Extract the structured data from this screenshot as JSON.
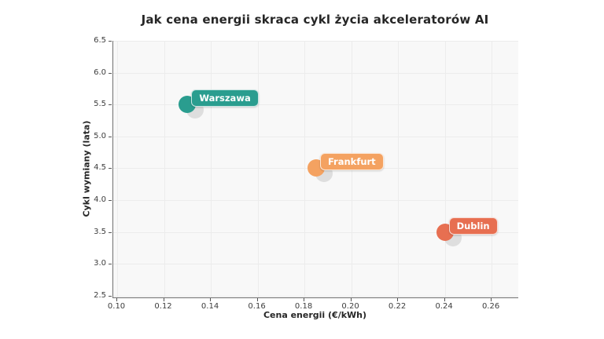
{
  "chart_data": {
    "type": "scatter",
    "title": "Jak cena energii skraca cykl życia akceleratorów AI",
    "xlabel": "Cena energii (€/kWh)",
    "ylabel": "Cykl wymiany (lata)",
    "xlim": [
      0.0983,
      0.2714
    ],
    "ylim": [
      2.47,
      6.505
    ],
    "grid": true,
    "legend": false,
    "background_color": "#f8f8f8",
    "gridline_color": "#ececec",
    "shadow_color": "#c4c4c4",
    "x_ticks": [
      {
        "value": 0.1,
        "label": "0.10"
      },
      {
        "value": 0.12,
        "label": "0.12"
      },
      {
        "value": 0.14,
        "label": "0.14"
      },
      {
        "value": 0.16,
        "label": "0.16"
      },
      {
        "value": 0.18,
        "label": "0.18"
      },
      {
        "value": 0.2,
        "label": "0.20"
      },
      {
        "value": 0.22,
        "label": "0.22"
      },
      {
        "value": 0.24,
        "label": "0.24"
      },
      {
        "value": 0.26,
        "label": "0.26"
      }
    ],
    "y_ticks": [
      {
        "value": 2.5,
        "label": "2.5"
      },
      {
        "value": 3.0,
        "label": "3.0"
      },
      {
        "value": 3.5,
        "label": "3.5"
      },
      {
        "value": 4.0,
        "label": "4.0"
      },
      {
        "value": 4.5,
        "label": "4.5"
      },
      {
        "value": 5.0,
        "label": "5.0"
      },
      {
        "value": 5.5,
        "label": "5.5"
      },
      {
        "value": 6.0,
        "label": "6.0"
      },
      {
        "value": 6.5,
        "label": "6.5"
      }
    ],
    "points": [
      {
        "label": "Warszawa",
        "x": 0.13,
        "y": 5.5,
        "color": "#2a9d8f"
      },
      {
        "label": "Frankfurt",
        "x": 0.185,
        "y": 4.5,
        "color": "#f4a261"
      },
      {
        "label": "Dublin",
        "x": 0.24,
        "y": 3.5,
        "color": "#e76f51"
      }
    ]
  }
}
